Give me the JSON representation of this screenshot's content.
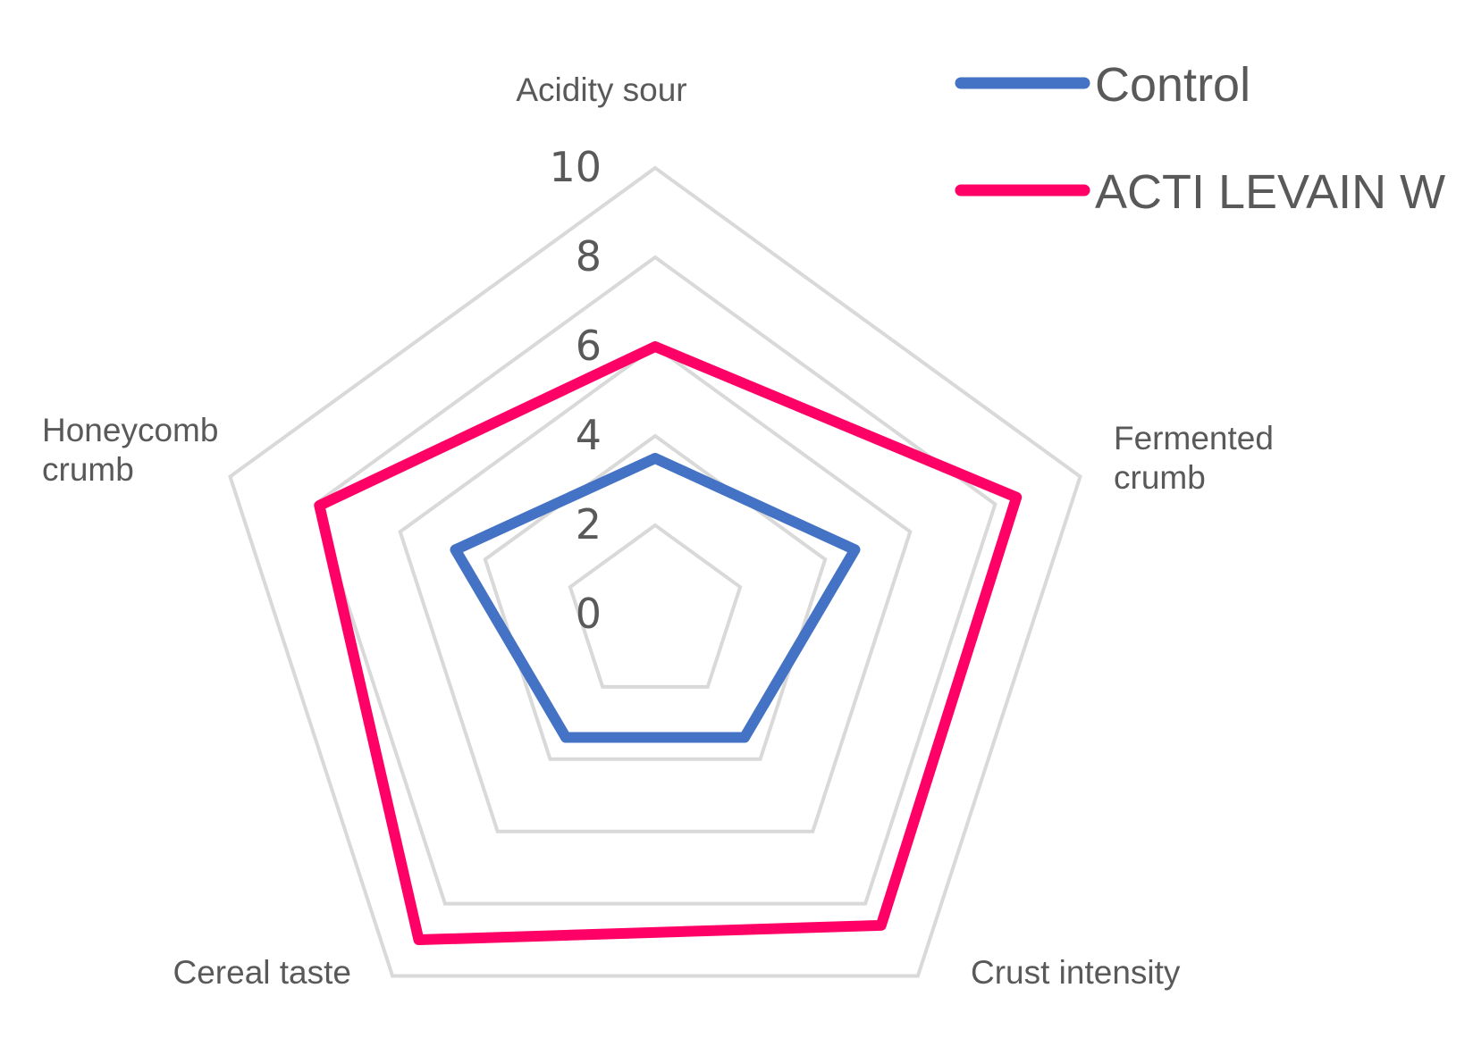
{
  "chart_data": {
    "type": "radar",
    "categories": [
      "Acidity sour",
      "Fermented crumb",
      "Crust intensity",
      "Cereal taste",
      "Honeycomb crumb"
    ],
    "category_label_lines": [
      [
        "Acidity sour"
      ],
      [
        "Fermented",
        "crumb"
      ],
      [
        "Crust intensity"
      ],
      [
        "Cereal taste"
      ],
      [
        "Honeycomb",
        "crumb"
      ]
    ],
    "radial_ticks": [
      "0",
      "2",
      "4",
      "6",
      "8",
      "10"
    ],
    "rlim": [
      0,
      10
    ],
    "grid": true,
    "legend_position": "top-right",
    "series": [
      {
        "name": "Control",
        "color": "#4472C4",
        "values": [
          3.5,
          4.7,
          3.4,
          3.4,
          4.7
        ]
      },
      {
        "name": "ACTI LEVAIN W",
        "color": "#FF0066",
        "values": [
          6.0,
          8.5,
          8.6,
          9.0,
          7.9
        ]
      }
    ]
  }
}
